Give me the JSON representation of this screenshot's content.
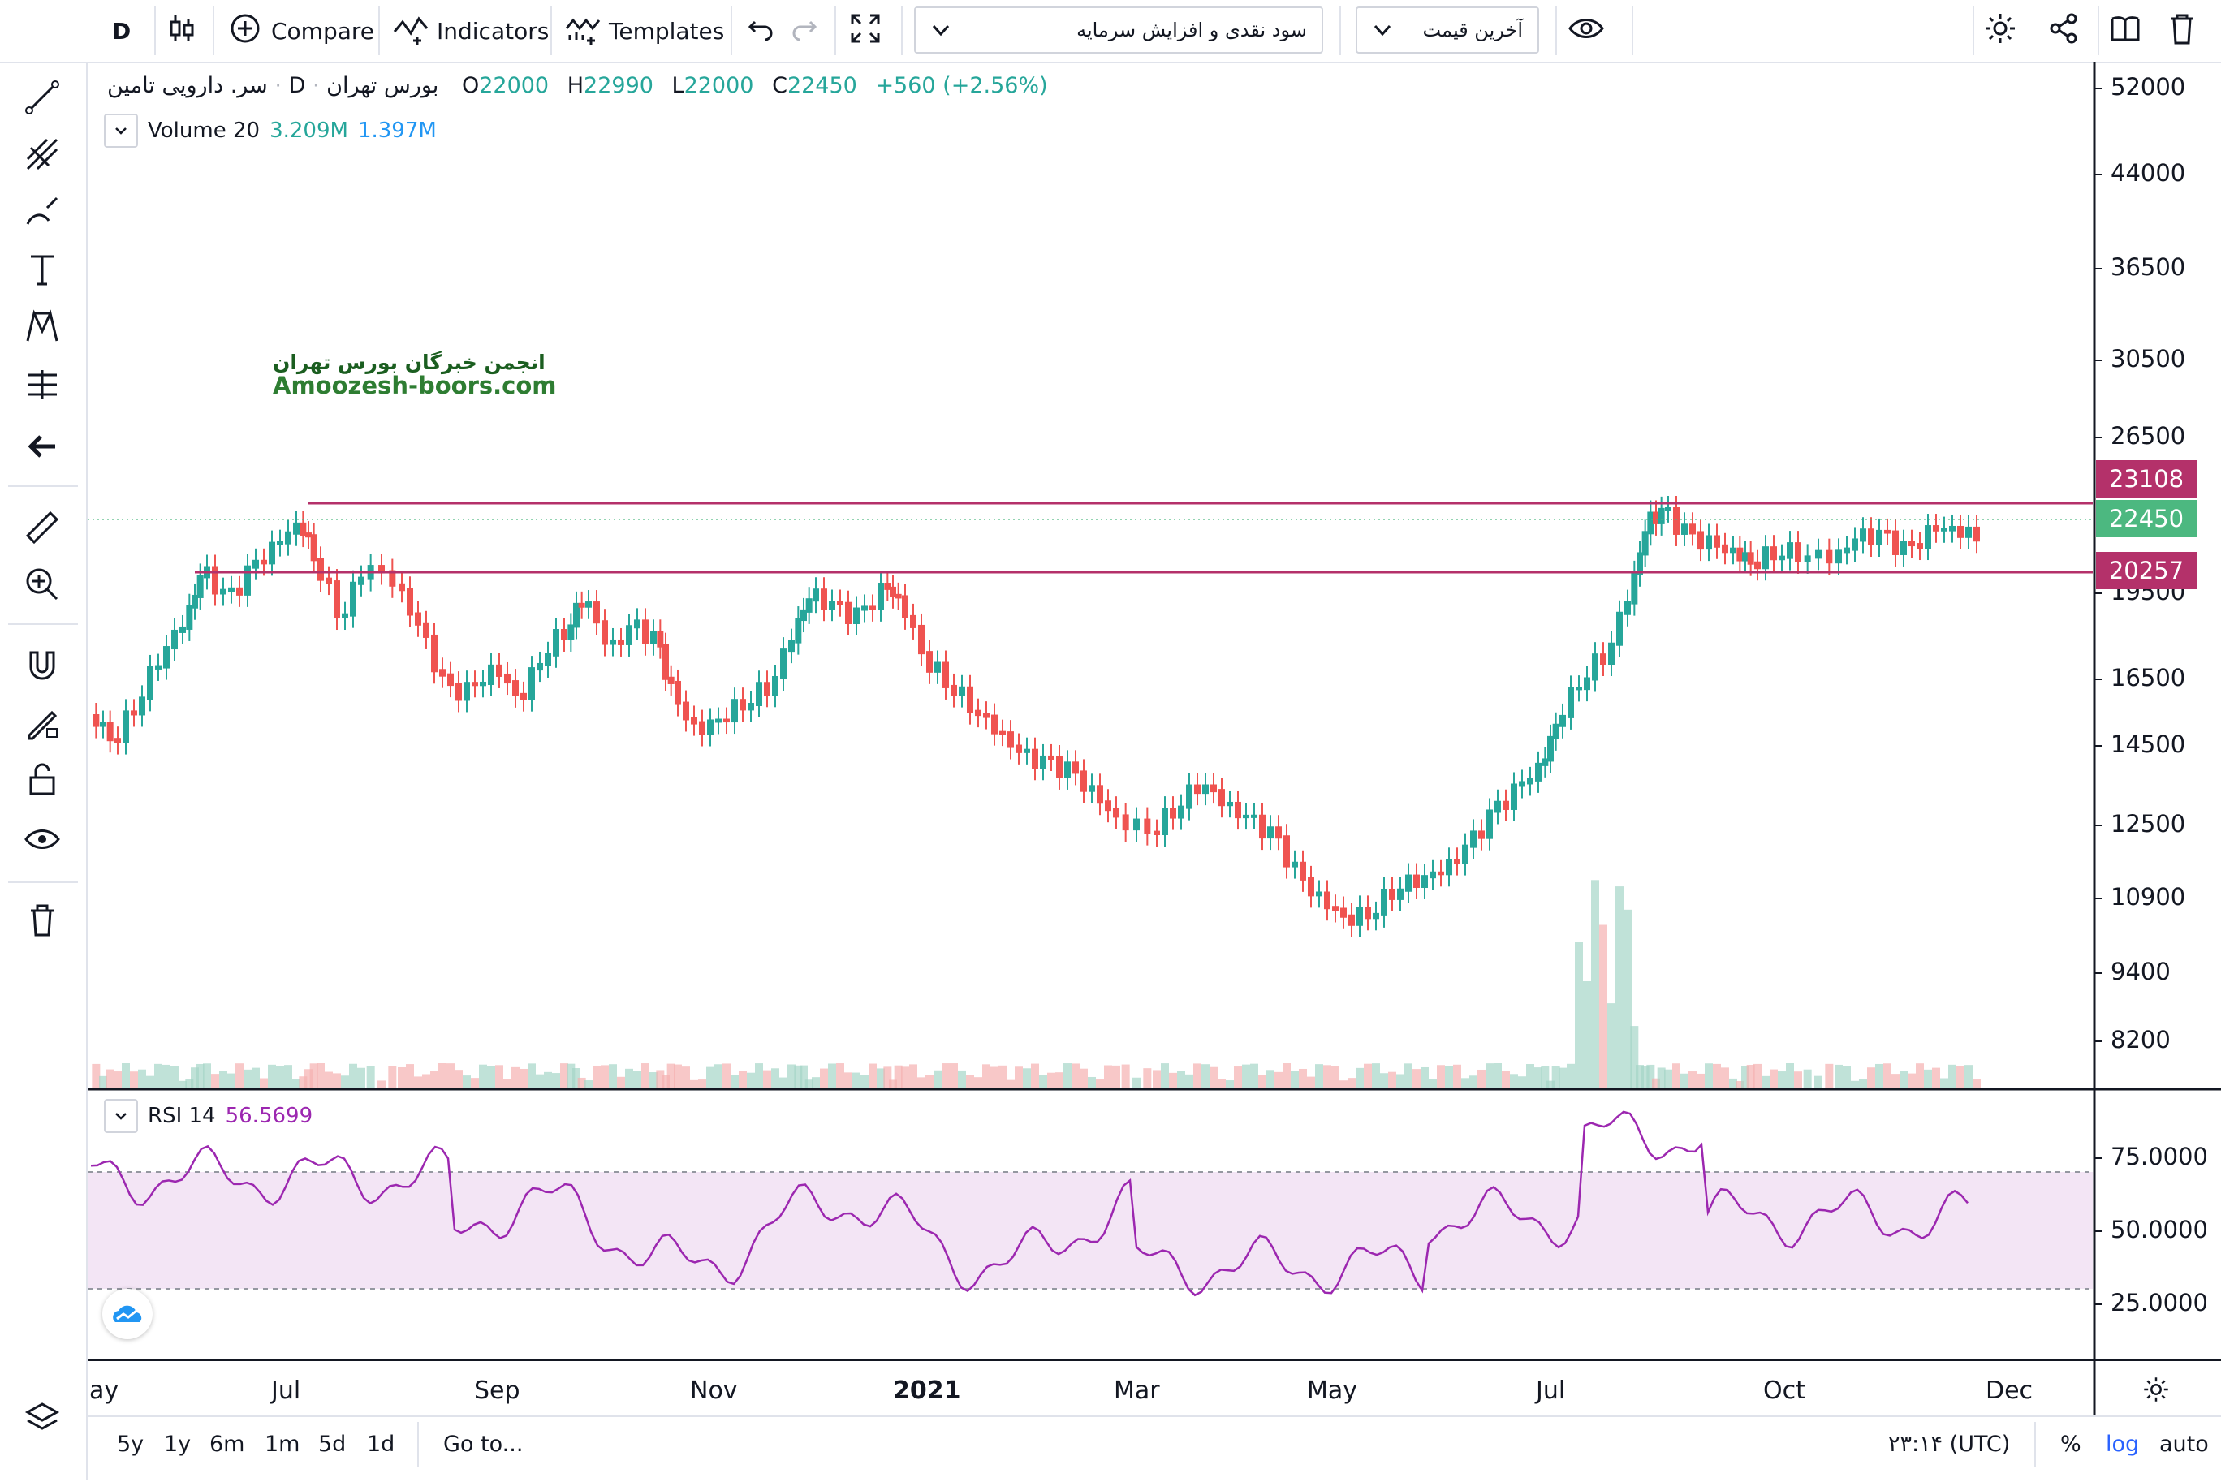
{
  "toolbar": {
    "interval": "D",
    "compare_label": "Compare",
    "indicators_label": "Indicators",
    "templates_label": "Templates",
    "adjustment_select": "سود نقدی و افزایش سرمایه",
    "price_type_select": "آخرین قیمت"
  },
  "legend": {
    "symbol": "سر. دارویی تامین",
    "interval": "D",
    "exchange": "بورس تهران",
    "open_label": "O",
    "open": "22000",
    "high_label": "H",
    "high": "22990",
    "low_label": "L",
    "low": "22000",
    "close_label": "C",
    "close": "22450",
    "change": "+560 (+2.56%)",
    "volume_name": "Volume 20",
    "volume_value": "3.209M",
    "volume_ma": "1.397M"
  },
  "watermark": {
    "line1": "انجمن خبرگان بورس تهران",
    "line2": "Amoozesh-boors.com"
  },
  "price_axis": [
    "52000",
    "44000",
    "36500",
    "30500",
    "26500",
    "19500",
    "16500",
    "14500",
    "12500",
    "10900",
    "9400",
    "8200"
  ],
  "price_badges": {
    "upper_level": "23108",
    "last_price": "22450",
    "lower_level": "20257"
  },
  "rsi": {
    "name": "RSI 14",
    "value": "56.5699",
    "axis": [
      "75.0000",
      "50.0000",
      "25.0000"
    ]
  },
  "time_axis": [
    "ay",
    "Jul",
    "Sep",
    "Nov",
    "2021",
    "Mar",
    "May",
    "Jul",
    "Oct",
    "Dec"
  ],
  "bottom": {
    "ranges": [
      "5y",
      "1y",
      "6m",
      "1m",
      "5d",
      "1d"
    ],
    "goto": "Go to...",
    "clock": "۲۳:۱۴ (UTC)",
    "percent": "%",
    "log": "log",
    "auto": "auto"
  },
  "colors": {
    "up": "#26a69a",
    "down": "#ef5350",
    "level_line": "#b4316a",
    "last_price": "#4cb880",
    "rsi_line": "#9c27b0",
    "rsi_band": "#f3e5f5",
    "link_blue": "#2962ff"
  }
}
